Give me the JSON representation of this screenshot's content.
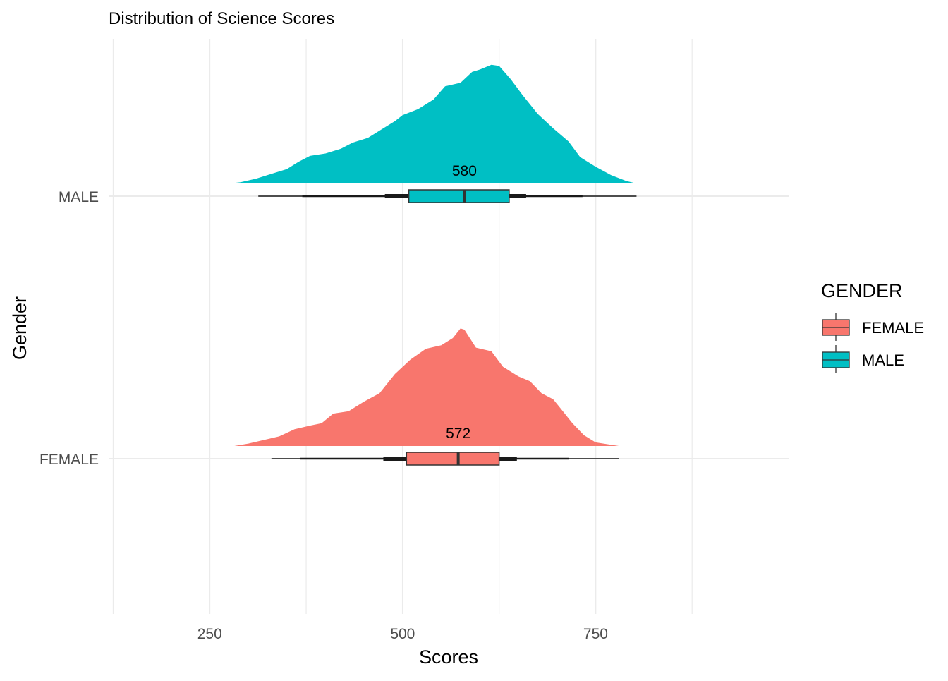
{
  "chart_data": {
    "type": "raincloud",
    "title": "Distribution of Science Scores",
    "xlabel": "Scores",
    "ylabel": "Gender",
    "xlim": [
      120,
      1000
    ],
    "x_ticks": [
      250,
      500,
      750
    ],
    "x_tick_labels": [
      "250",
      "500",
      "750"
    ],
    "x_minor_gridlines": [
      125,
      375,
      625,
      875
    ],
    "grid": true,
    "legend": {
      "title": "GENDER",
      "position": "right",
      "entries": [
        "FEMALE",
        "MALE"
      ]
    },
    "categories": [
      "FEMALE",
      "MALE"
    ],
    "series": [
      {
        "name": "FEMALE",
        "color": "#F8766D",
        "median": 572,
        "median_label": "572",
        "q1": 505,
        "q3": 625,
        "interval_66": [
          475,
          648
        ],
        "interval_95": [
          367,
          715
        ],
        "min": 330,
        "max": 780,
        "density": [
          [
            282,
            0.0
          ],
          [
            300,
            0.02
          ],
          [
            320,
            0.05
          ],
          [
            340,
            0.08
          ],
          [
            360,
            0.14
          ],
          [
            380,
            0.17
          ],
          [
            395,
            0.19
          ],
          [
            410,
            0.27
          ],
          [
            430,
            0.29
          ],
          [
            450,
            0.37
          ],
          [
            470,
            0.44
          ],
          [
            490,
            0.6
          ],
          [
            510,
            0.72
          ],
          [
            530,
            0.81
          ],
          [
            550,
            0.84
          ],
          [
            565,
            0.9
          ],
          [
            575,
            0.98
          ],
          [
            580,
            0.97
          ],
          [
            595,
            0.82
          ],
          [
            615,
            0.79
          ],
          [
            630,
            0.66
          ],
          [
            650,
            0.58
          ],
          [
            665,
            0.54
          ],
          [
            680,
            0.44
          ],
          [
            695,
            0.39
          ],
          [
            705,
            0.31
          ],
          [
            720,
            0.19
          ],
          [
            735,
            0.09
          ],
          [
            750,
            0.03
          ],
          [
            780,
            0.0
          ]
        ]
      },
      {
        "name": "MALE",
        "color": "#00BFC4",
        "median": 580,
        "median_label": "580",
        "q1": 508,
        "q3": 638,
        "interval_66": [
          477,
          660
        ],
        "interval_95": [
          370,
          733
        ],
        "min": 313,
        "max": 803,
        "density": [
          [
            275,
            0.0
          ],
          [
            290,
            0.01
          ],
          [
            310,
            0.04
          ],
          [
            330,
            0.08
          ],
          [
            350,
            0.12
          ],
          [
            365,
            0.18
          ],
          [
            380,
            0.23
          ],
          [
            400,
            0.25
          ],
          [
            420,
            0.29
          ],
          [
            435,
            0.34
          ],
          [
            455,
            0.38
          ],
          [
            475,
            0.46
          ],
          [
            490,
            0.52
          ],
          [
            500,
            0.57
          ],
          [
            520,
            0.62
          ],
          [
            540,
            0.7
          ],
          [
            555,
            0.81
          ],
          [
            575,
            0.84
          ],
          [
            590,
            0.93
          ],
          [
            600,
            0.95
          ],
          [
            615,
            0.99
          ],
          [
            625,
            0.98
          ],
          [
            640,
            0.87
          ],
          [
            655,
            0.74
          ],
          [
            675,
            0.58
          ],
          [
            695,
            0.46
          ],
          [
            715,
            0.35
          ],
          [
            730,
            0.22
          ],
          [
            750,
            0.14
          ],
          [
            770,
            0.07
          ],
          [
            790,
            0.02
          ],
          [
            803,
            0.0
          ]
        ]
      }
    ]
  }
}
